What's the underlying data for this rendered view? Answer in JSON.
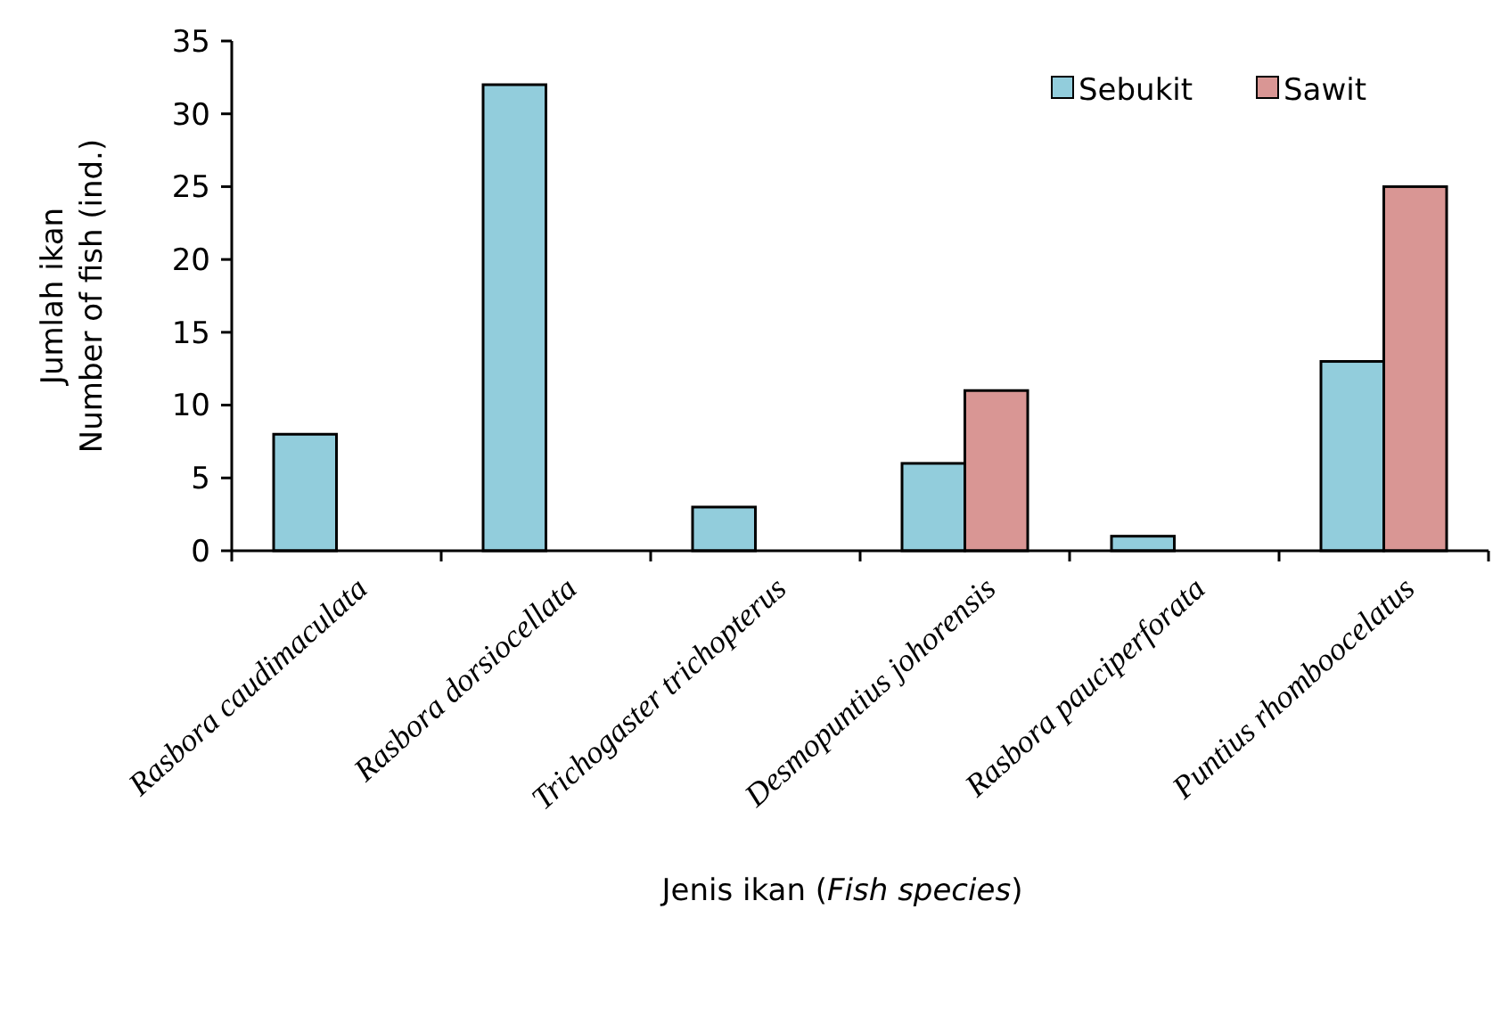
{
  "chart_data": {
    "type": "bar",
    "xlabel": "Jenis ikan (Fish species)",
    "ylabel": "Jumlah ikan\nNumber of fish (ind.)",
    "categories": [
      "Rasbora caudimaculata",
      "Rasbora dorsiocellata",
      "Trichogaster trichopterus",
      "Desmopuntius johorensis",
      "Rasbora pauciperforata",
      "Puntius rhomboocelatus"
    ],
    "series": [
      {
        "name": "Sebukit",
        "color": "#92cddc",
        "values": [
          8,
          32,
          3,
          6,
          1,
          13
        ]
      },
      {
        "name": "Sawit",
        "color": "#d99694",
        "values": [
          null,
          null,
          null,
          11,
          null,
          25
        ]
      }
    ],
    "ylim": [
      0,
      35
    ],
    "yticks": [
      0,
      5,
      10,
      15,
      20,
      25,
      30,
      35
    ],
    "grid": false,
    "legend": "top right"
  }
}
